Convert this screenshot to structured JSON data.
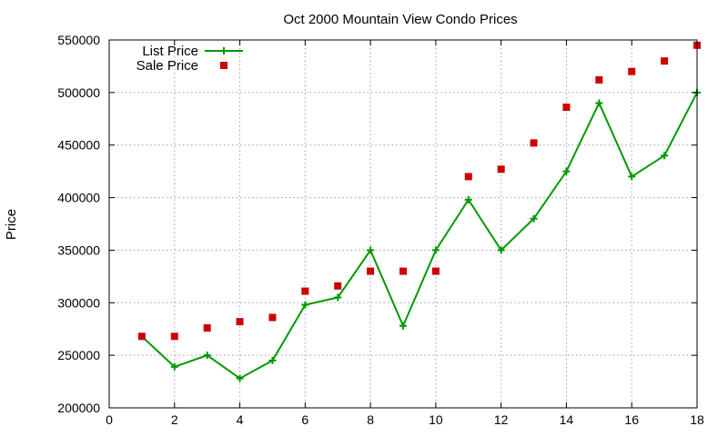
{
  "chart_data": {
    "type": "line",
    "title": "Oct 2000 Mountain View Condo Prices",
    "xlabel": "",
    "ylabel": "Price",
    "xlim": [
      0,
      18
    ],
    "ylim": [
      200000,
      550000
    ],
    "x_ticks": [
      0,
      2,
      4,
      6,
      8,
      10,
      12,
      14,
      16,
      18
    ],
    "y_ticks": [
      200000,
      250000,
      300000,
      350000,
      400000,
      450000,
      500000,
      550000
    ],
    "grid": true,
    "legend_position": "top-left",
    "x": [
      1,
      2,
      3,
      4,
      5,
      6,
      7,
      8,
      9,
      10,
      11,
      12,
      13,
      14,
      15,
      16,
      17,
      18
    ],
    "series": [
      {
        "name": "List Price",
        "style": "line-with-plus-markers",
        "color": "#009900",
        "values": [
          268000,
          239000,
          250000,
          228000,
          245000,
          298000,
          305000,
          350000,
          278000,
          350000,
          398000,
          350000,
          380000,
          425000,
          490000,
          420000,
          440000,
          500000
        ]
      },
      {
        "name": "Sale Price",
        "style": "square-points",
        "color": "#cc0000",
        "values": [
          268000,
          268000,
          276000,
          282000,
          286000,
          311000,
          316000,
          330000,
          330000,
          330000,
          420000,
          427000,
          452000,
          486000,
          512000,
          520000,
          530000,
          545000
        ]
      }
    ]
  }
}
